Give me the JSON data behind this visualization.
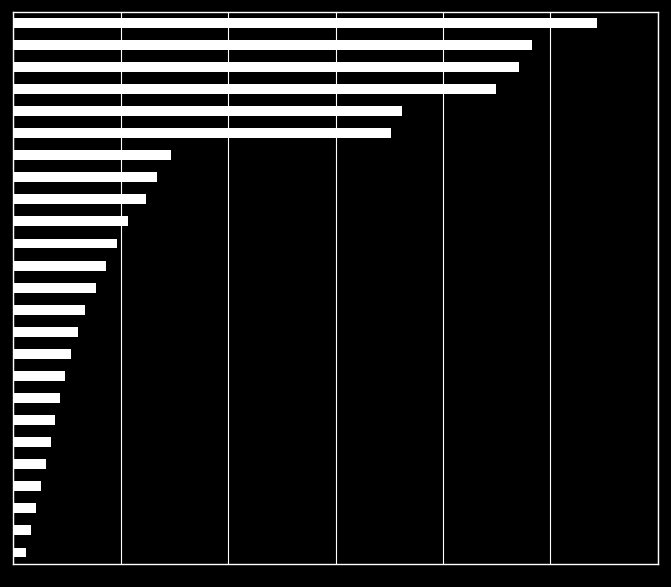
{
  "background_color": "#000000",
  "bar_color": "#ffffff",
  "text_color": "#ffffff",
  "values": [
    81.5,
    72.5,
    70.7,
    67.4,
    54.3,
    52.7,
    22.0,
    20.0,
    18.5,
    16.0,
    14.5,
    13.0,
    11.5,
    10.0,
    9.0,
    8.0,
    7.2,
    6.5,
    5.8,
    5.2,
    4.5,
    3.8,
    3.2,
    2.5,
    1.8
  ],
  "xlim": [
    0,
    90
  ],
  "xticks": [
    0,
    15,
    30,
    45,
    60,
    75,
    90
  ],
  "bar_height": 0.45,
  "figsize": [
    6.71,
    5.87
  ],
  "dpi": 100
}
